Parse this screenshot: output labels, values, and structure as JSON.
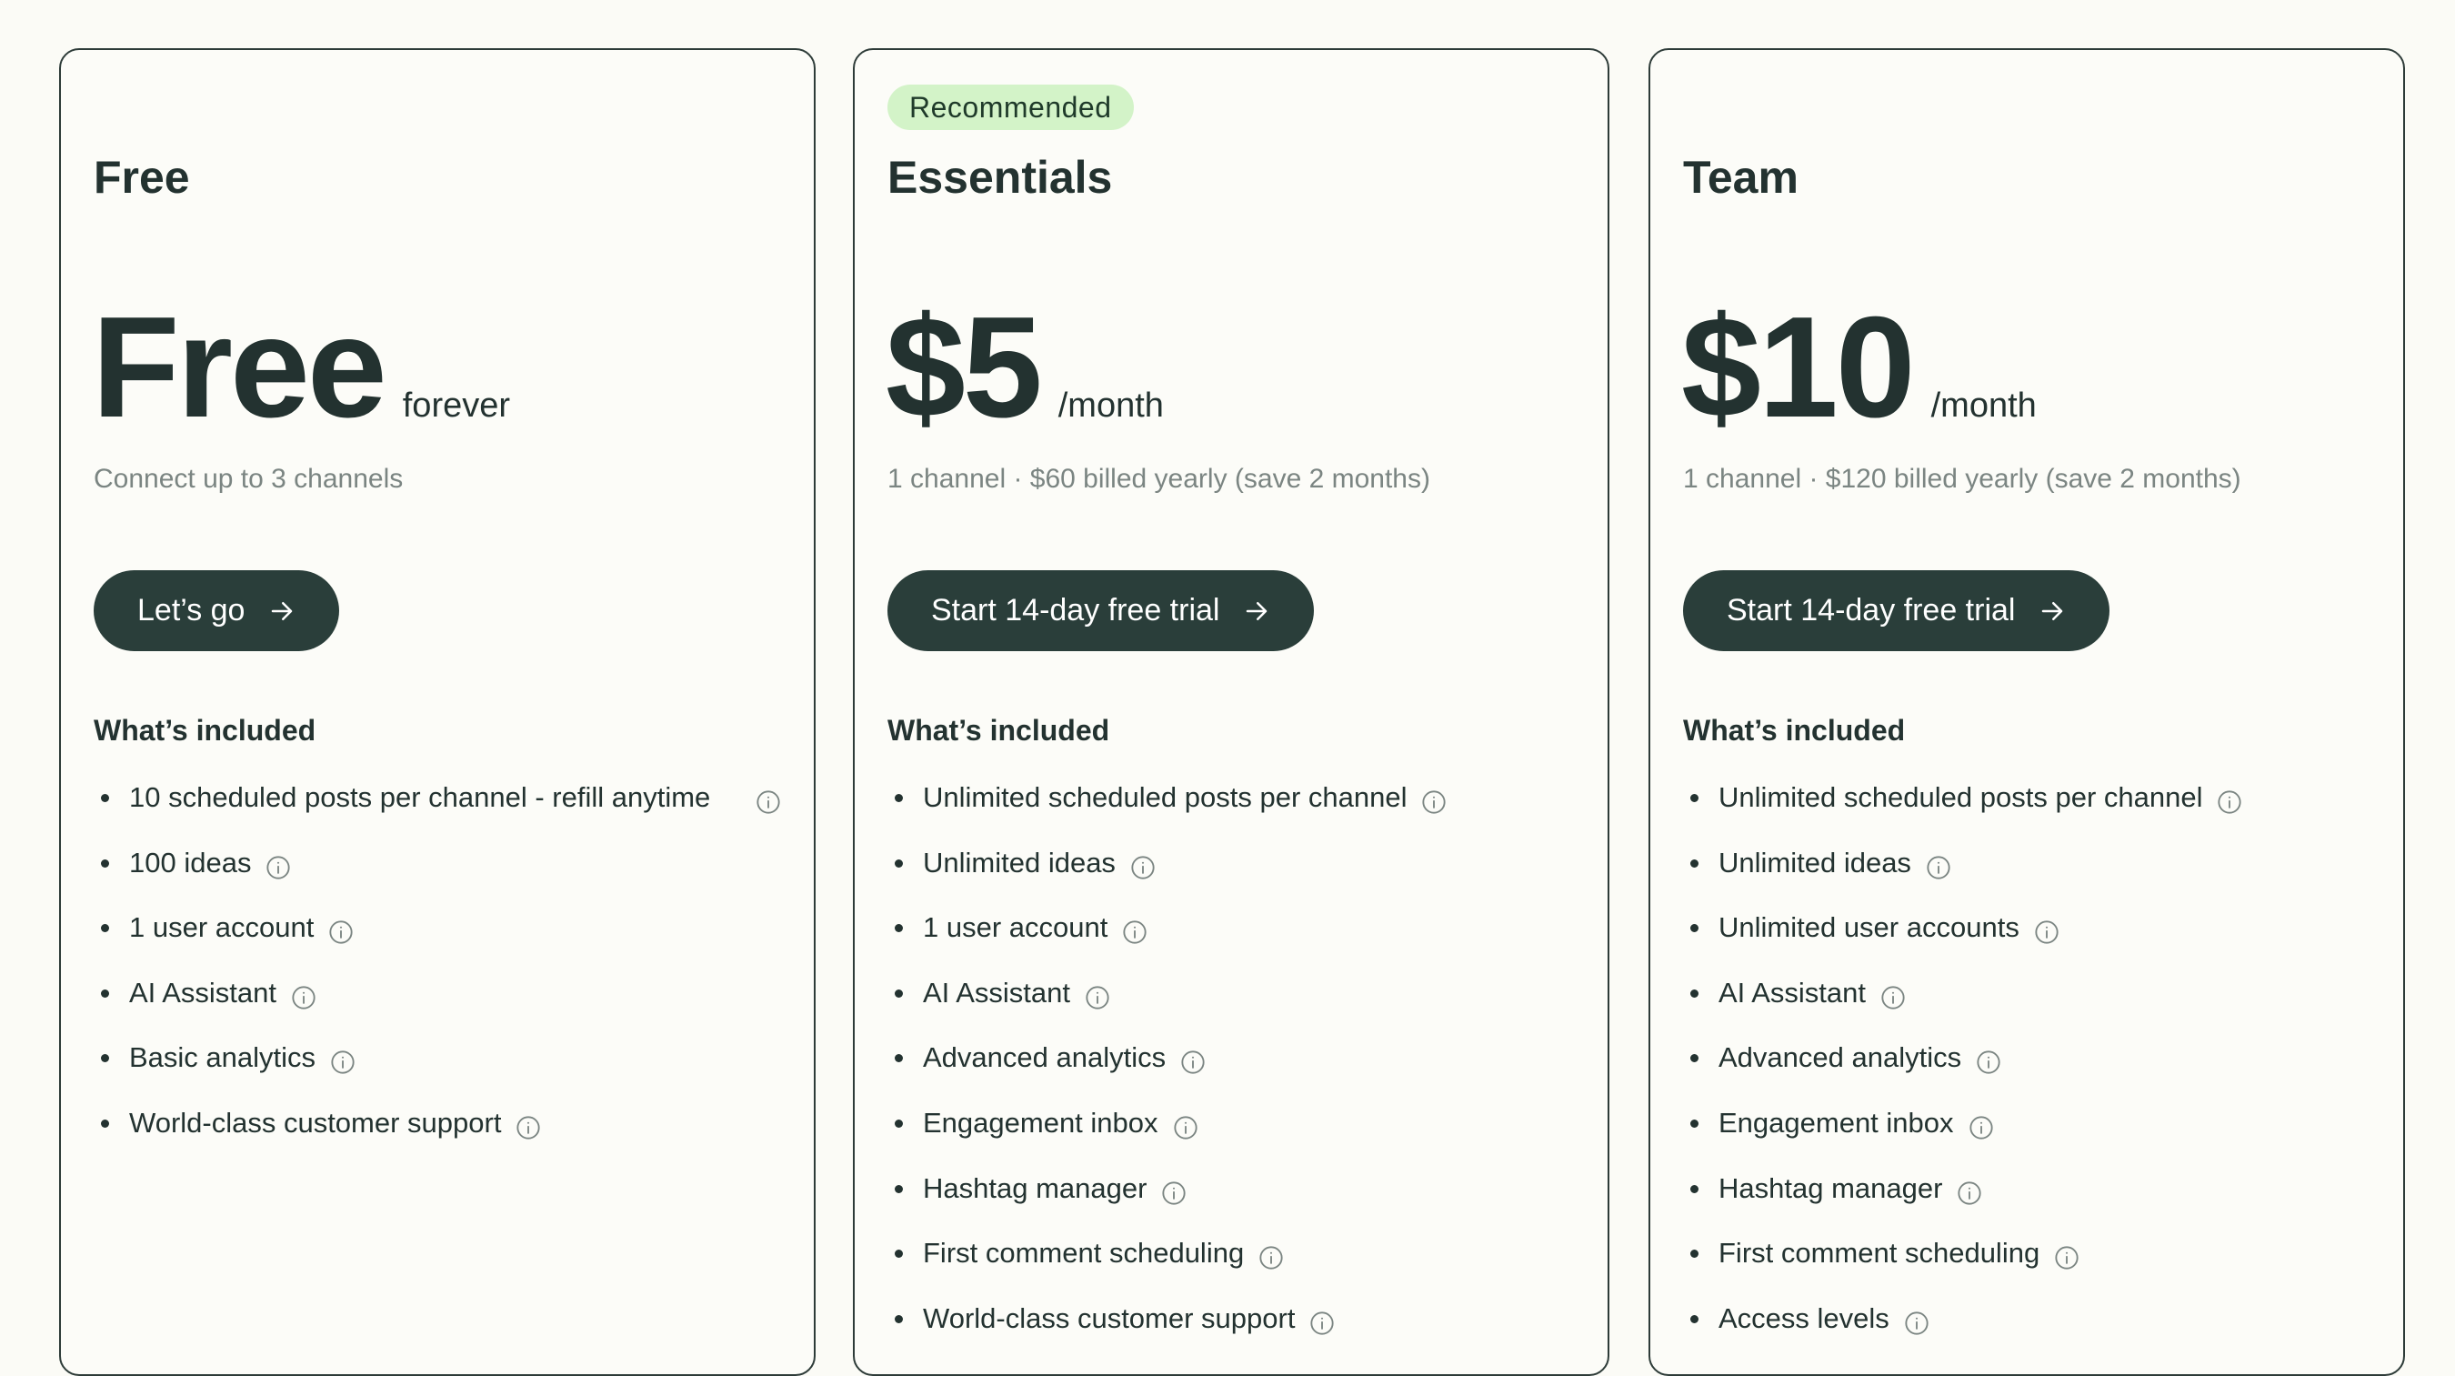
{
  "plans": [
    {
      "name": "Free",
      "badge": "",
      "price": "Free",
      "period": "forever",
      "subtitle": "Connect up to 3 channels",
      "cta": "Let’s go",
      "included_title": "What’s included",
      "features": [
        "10 scheduled posts per channel - refill anytime",
        "100 ideas",
        "1 user account",
        "AI Assistant",
        "Basic analytics",
        "World-class customer support"
      ]
    },
    {
      "name": "Essentials",
      "badge": "Recommended",
      "price": "$5",
      "period": "/month",
      "subtitle": "1 channel · $60 billed yearly (save 2 months)",
      "cta": "Start 14-day free trial",
      "included_title": "What’s included",
      "features": [
        "Unlimited scheduled posts per channel",
        "Unlimited ideas",
        "1 user account",
        "AI Assistant",
        "Advanced analytics",
        "Engagement inbox",
        "Hashtag manager",
        "First comment scheduling",
        "World-class customer support"
      ]
    },
    {
      "name": "Team",
      "badge": "",
      "price": "$10",
      "period": "/month",
      "subtitle": "1 channel · $120 billed yearly (save 2 months)",
      "cta": "Start 14-day free trial",
      "included_title": "What’s included",
      "features": [
        "Unlimited scheduled posts per channel",
        "Unlimited ideas",
        "Unlimited user accounts",
        "AI Assistant",
        "Advanced analytics",
        "Engagement inbox",
        "Hashtag manager",
        "First comment scheduling",
        "Access levels"
      ]
    }
  ],
  "colors": {
    "text": "#233230",
    "button": "#2a3e3a",
    "badge": "#d3f3c8",
    "background": "#fbfbf6"
  },
  "icons": {
    "cta": "arrow-right-icon",
    "feature": "info-icon"
  }
}
